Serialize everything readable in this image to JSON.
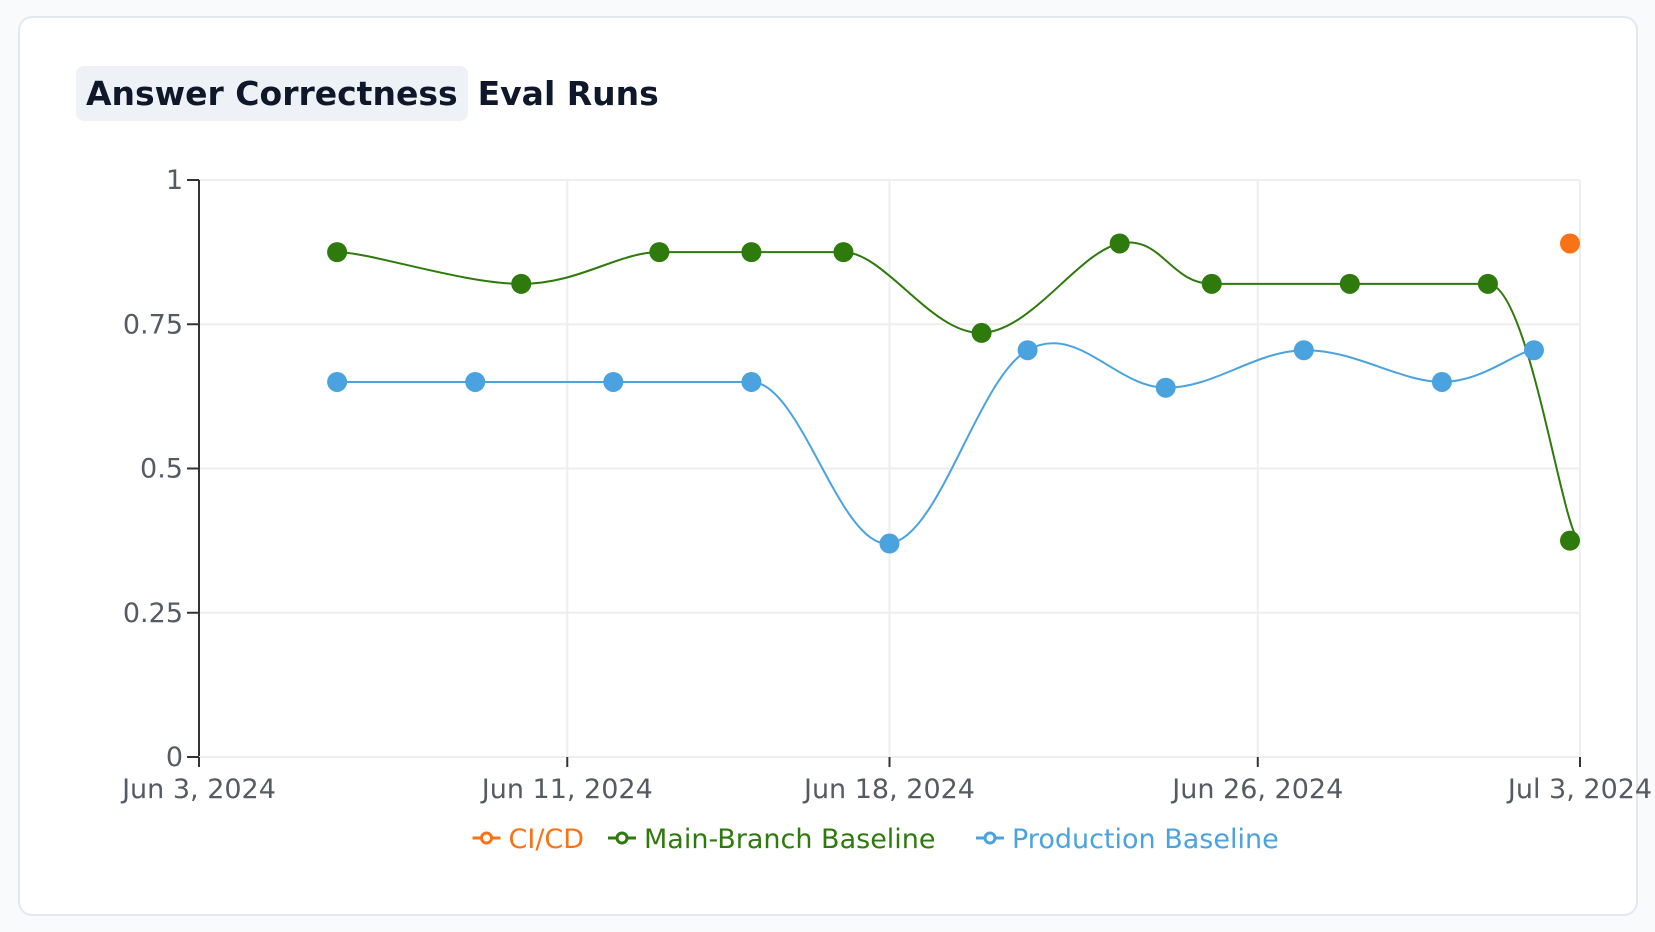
{
  "card": {
    "title_chip": "Answer Correctness",
    "title_rest": "Eval Runs"
  },
  "chart_data": {
    "type": "line",
    "x_axis": {
      "ticks": [
        "Jun 3, 2024",
        "Jun 11, 2024",
        "Jun 18, 2024",
        "Jun 26, 2024",
        "Jul 3, 2024"
      ],
      "range": [
        "2024-06-03",
        "2024-07-03"
      ]
    },
    "y_axis": {
      "ticks": [
        "0",
        "0.25",
        "0.5",
        "0.75",
        "1"
      ],
      "tick_values": [
        0,
        0.25,
        0.5,
        0.75,
        1
      ],
      "range": [
        0,
        1
      ]
    },
    "grid": true,
    "legend_position": "bottom",
    "series": [
      {
        "name": "CI/CD",
        "color": "#f97316",
        "points": [
          {
            "x": "2024-07-03",
            "y": 0.89
          }
        ]
      },
      {
        "name": "Main-Branch Baseline",
        "color": "#2f7a0c",
        "points": [
          {
            "x": "2024-06-06",
            "y": 0.875
          },
          {
            "x": "2024-06-10",
            "y": 0.82
          },
          {
            "x": "2024-06-13",
            "y": 0.875
          },
          {
            "x": "2024-06-15",
            "y": 0.875
          },
          {
            "x": "2024-06-17",
            "y": 0.875
          },
          {
            "x": "2024-06-20",
            "y": 0.735
          },
          {
            "x": "2024-06-23",
            "y": 0.89
          },
          {
            "x": "2024-06-25",
            "y": 0.82
          },
          {
            "x": "2024-06-28",
            "y": 0.82
          },
          {
            "x": "2024-07-01",
            "y": 0.82
          },
          {
            "x": "2024-07-03",
            "y": 0.375
          }
        ]
      },
      {
        "name": "Production Baseline",
        "color": "#4aa3df",
        "points": [
          {
            "x": "2024-06-06",
            "y": 0.65
          },
          {
            "x": "2024-06-09",
            "y": 0.65
          },
          {
            "x": "2024-06-12",
            "y": 0.65
          },
          {
            "x": "2024-06-15",
            "y": 0.65
          },
          {
            "x": "2024-06-18",
            "y": 0.37
          },
          {
            "x": "2024-06-21",
            "y": 0.705
          },
          {
            "x": "2024-06-24",
            "y": 0.64
          },
          {
            "x": "2024-06-27",
            "y": 0.705
          },
          {
            "x": "2024-06-30",
            "y": 0.65
          },
          {
            "x": "2024-07-02",
            "y": 0.705
          }
        ]
      }
    ]
  }
}
